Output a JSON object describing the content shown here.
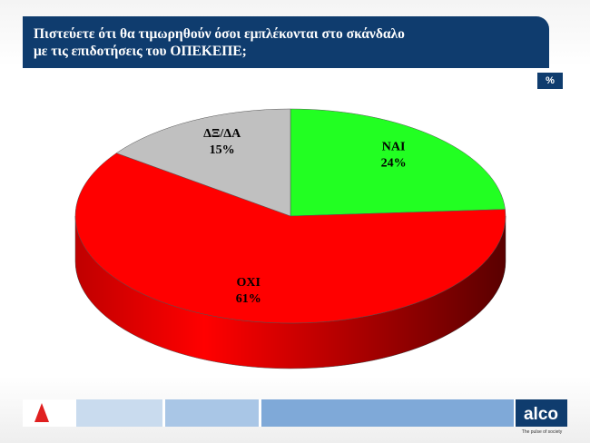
{
  "chart_data": {
    "type": "pie3d",
    "title": "Πιστεύετε ότι θα τιμωρηθούν όσοι εμπλέκονται στο σκάνδαλο\nμε τις επιδοτήσεις του ΟΠΕΚΕΠΕ;",
    "unit": "%",
    "categories": [
      "ΝΑΙ",
      "ΟΧΙ",
      "ΔΞ/ΔΑ"
    ],
    "values": [
      24,
      61,
      15
    ],
    "value_labels": [
      "24%",
      "61%",
      "15%"
    ],
    "colors": [
      "#22ff22",
      "#ff0000",
      "#c0c0c0"
    ]
  },
  "branding": {
    "logo": "alco",
    "tagline": "The pulse of society"
  }
}
